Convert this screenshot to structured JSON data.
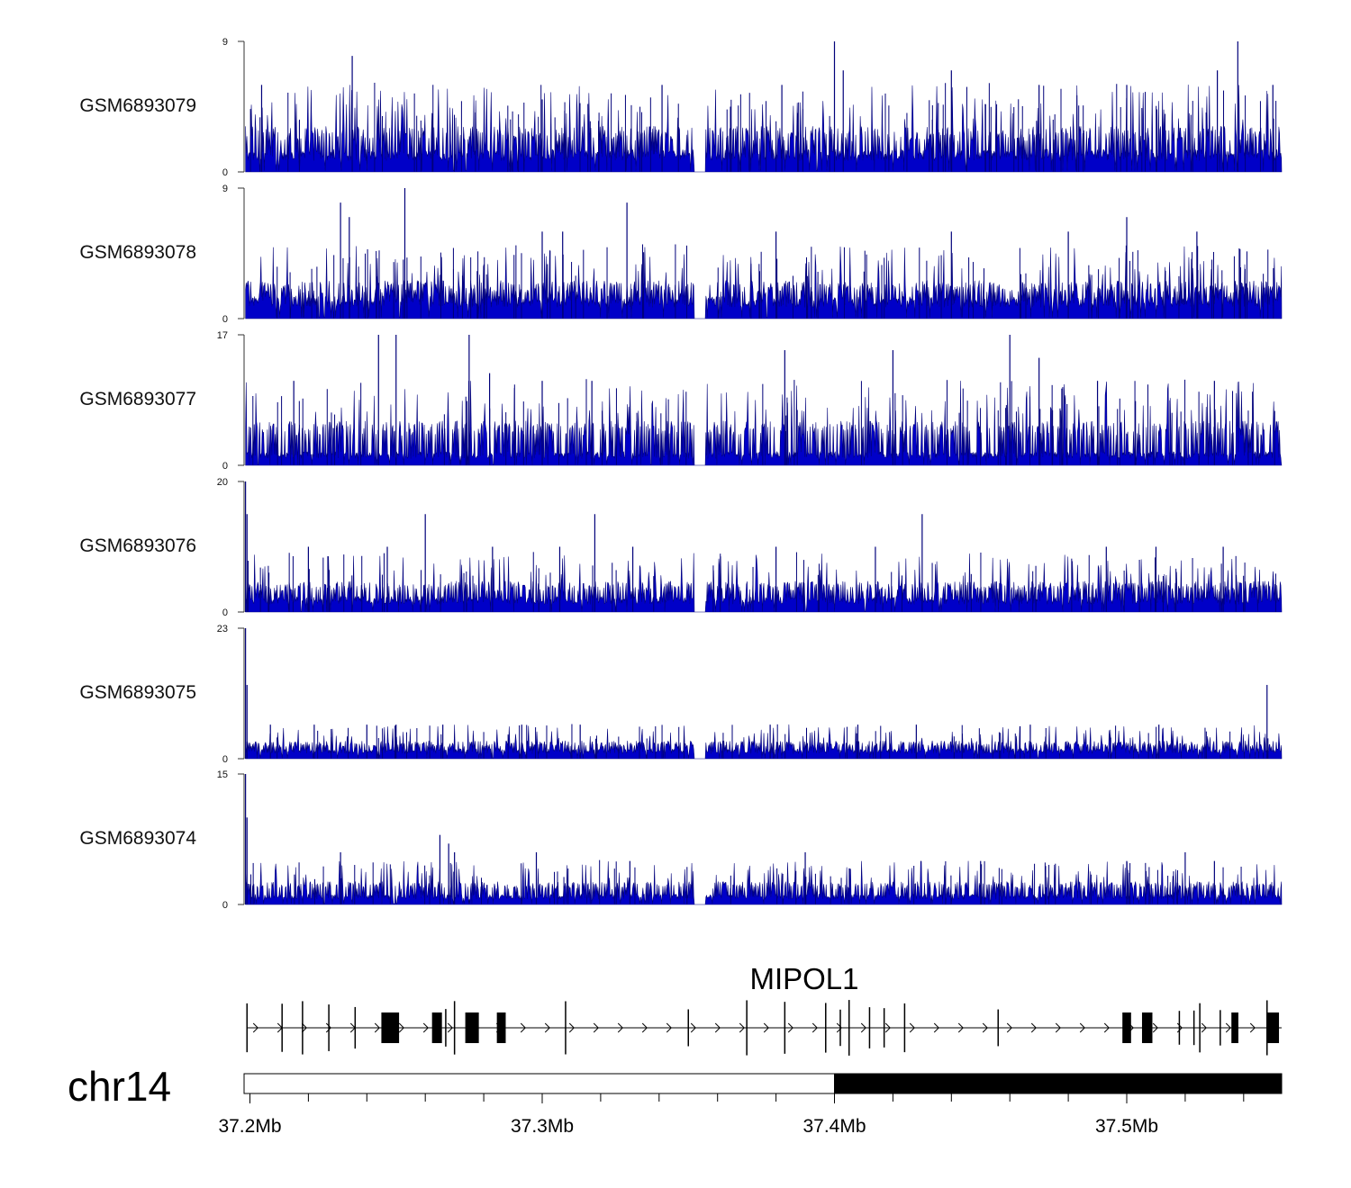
{
  "chart_data": {
    "type": "area",
    "chromosome": "chr14",
    "xlim_mb": [
      37.198,
      37.553
    ],
    "x_ticks": [
      {
        "value": 37.2,
        "label": "37.2Mb"
      },
      {
        "value": 37.3,
        "label": "37.3Mb"
      },
      {
        "value": 37.4,
        "label": "37.4Mb"
      },
      {
        "value": 37.5,
        "label": "37.5Mb"
      }
    ],
    "gap_mb": [
      37.352,
      37.356
    ],
    "series_color": "#0000c8",
    "outline_color": "#00007a",
    "tracks": [
      {
        "name": "GSM6893079",
        "ymax": 9,
        "ymax_label": "9",
        "ymin_label": "0",
        "baseline": 1.3,
        "band": 3,
        "spike_count": 95,
        "peaks": [
          [
            37.204,
            6
          ],
          [
            37.235,
            8
          ],
          [
            37.3,
            5
          ],
          [
            37.341,
            6
          ],
          [
            37.382,
            6
          ],
          [
            37.4,
            9
          ],
          [
            37.403,
            7
          ],
          [
            37.44,
            7
          ],
          [
            37.47,
            6
          ],
          [
            37.5,
            6
          ],
          [
            37.531,
            7
          ],
          [
            37.538,
            9
          ],
          [
            37.55,
            6
          ]
        ]
      },
      {
        "name": "GSM6893078",
        "ymax": 9,
        "ymax_label": "9",
        "ymin_label": "0",
        "baseline": 1.3,
        "band": 2.5,
        "spike_count": 95,
        "peaks": [
          [
            37.231,
            8
          ],
          [
            37.234,
            7
          ],
          [
            37.253,
            9
          ],
          [
            37.3,
            6
          ],
          [
            37.307,
            6
          ],
          [
            37.329,
            8
          ],
          [
            37.38,
            6
          ],
          [
            37.44,
            6
          ],
          [
            37.48,
            6
          ],
          [
            37.5,
            7
          ],
          [
            37.524,
            6
          ]
        ]
      },
      {
        "name": "GSM6893077",
        "ymax": 17,
        "ymax_label": "17",
        "ymin_label": "0",
        "baseline": 1.5,
        "band": 5.5,
        "spike_count": 70,
        "peaks": [
          [
            37.215,
            11
          ],
          [
            37.244,
            17
          ],
          [
            37.25,
            17
          ],
          [
            37.275,
            17
          ],
          [
            37.282,
            12
          ],
          [
            37.3,
            11
          ],
          [
            37.317,
            11
          ],
          [
            37.383,
            15
          ],
          [
            37.42,
            15
          ],
          [
            37.46,
            17
          ],
          [
            37.47,
            14
          ],
          [
            37.49,
            11
          ],
          [
            37.53,
            11
          ]
        ]
      },
      {
        "name": "GSM6893076",
        "ymax": 20,
        "ymax_label": "20",
        "ymin_label": "0",
        "baseline": 2.0,
        "band": 4.5,
        "spike_count": 55,
        "peaks": [
          [
            37.1985,
            20
          ],
          [
            37.199,
            15
          ],
          [
            37.22,
            10
          ],
          [
            37.247,
            10
          ],
          [
            37.26,
            15
          ],
          [
            37.283,
            10
          ],
          [
            37.306,
            10
          ],
          [
            37.318,
            15
          ],
          [
            37.331,
            10
          ],
          [
            37.38,
            10
          ],
          [
            37.414,
            10
          ],
          [
            37.43,
            15
          ],
          [
            37.493,
            10
          ],
          [
            37.51,
            10
          ],
          [
            37.533,
            10
          ]
        ]
      },
      {
        "name": "GSM6893075",
        "ymax": 23,
        "ymax_label": "23",
        "ymin_label": "0",
        "baseline": 1.5,
        "band": 3,
        "spike_count": 55,
        "peaks": [
          [
            37.1985,
            23
          ],
          [
            37.199,
            13
          ],
          [
            37.207,
            6
          ],
          [
            37.222,
            6
          ],
          [
            37.24,
            6
          ],
          [
            37.25,
            6
          ],
          [
            37.266,
            6
          ],
          [
            37.293,
            6
          ],
          [
            37.313,
            6
          ],
          [
            37.378,
            6
          ],
          [
            37.408,
            6
          ],
          [
            37.428,
            6
          ],
          [
            37.467,
            6
          ],
          [
            37.511,
            6
          ],
          [
            37.548,
            13
          ]
        ]
      },
      {
        "name": "GSM6893074",
        "ymax": 15,
        "ymax_label": "15",
        "ymin_label": "0",
        "baseline": 1.0,
        "band": 2.5,
        "spike_count": 60,
        "peaks": [
          [
            37.1985,
            15
          ],
          [
            37.199,
            10
          ],
          [
            37.231,
            6
          ],
          [
            37.265,
            8
          ],
          [
            37.268,
            7
          ],
          [
            37.27,
            6
          ],
          [
            37.298,
            6
          ],
          [
            37.33,
            5
          ],
          [
            37.39,
            6
          ],
          [
            37.45,
            5
          ],
          [
            37.5,
            5
          ],
          [
            37.52,
            6
          ],
          [
            37.53,
            5
          ]
        ]
      }
    ],
    "gene": {
      "name": "MIPOL1",
      "strand": "+",
      "exons_mb": [
        37.199,
        37.211,
        37.218,
        37.227,
        37.236,
        37.248,
        37.264,
        37.267,
        37.27,
        37.276,
        37.286,
        37.308,
        37.35,
        37.37,
        37.383,
        37.397,
        37.402,
        37.405,
        37.412,
        37.417,
        37.424,
        37.456,
        37.5,
        37.507,
        37.518,
        37.523,
        37.525,
        37.532,
        37.537,
        37.548,
        37.55
      ]
    },
    "ideogram": {
      "light_range_mb": [
        37.198,
        37.4
      ],
      "dark_range_mb": [
        37.4,
        37.553
      ]
    }
  }
}
